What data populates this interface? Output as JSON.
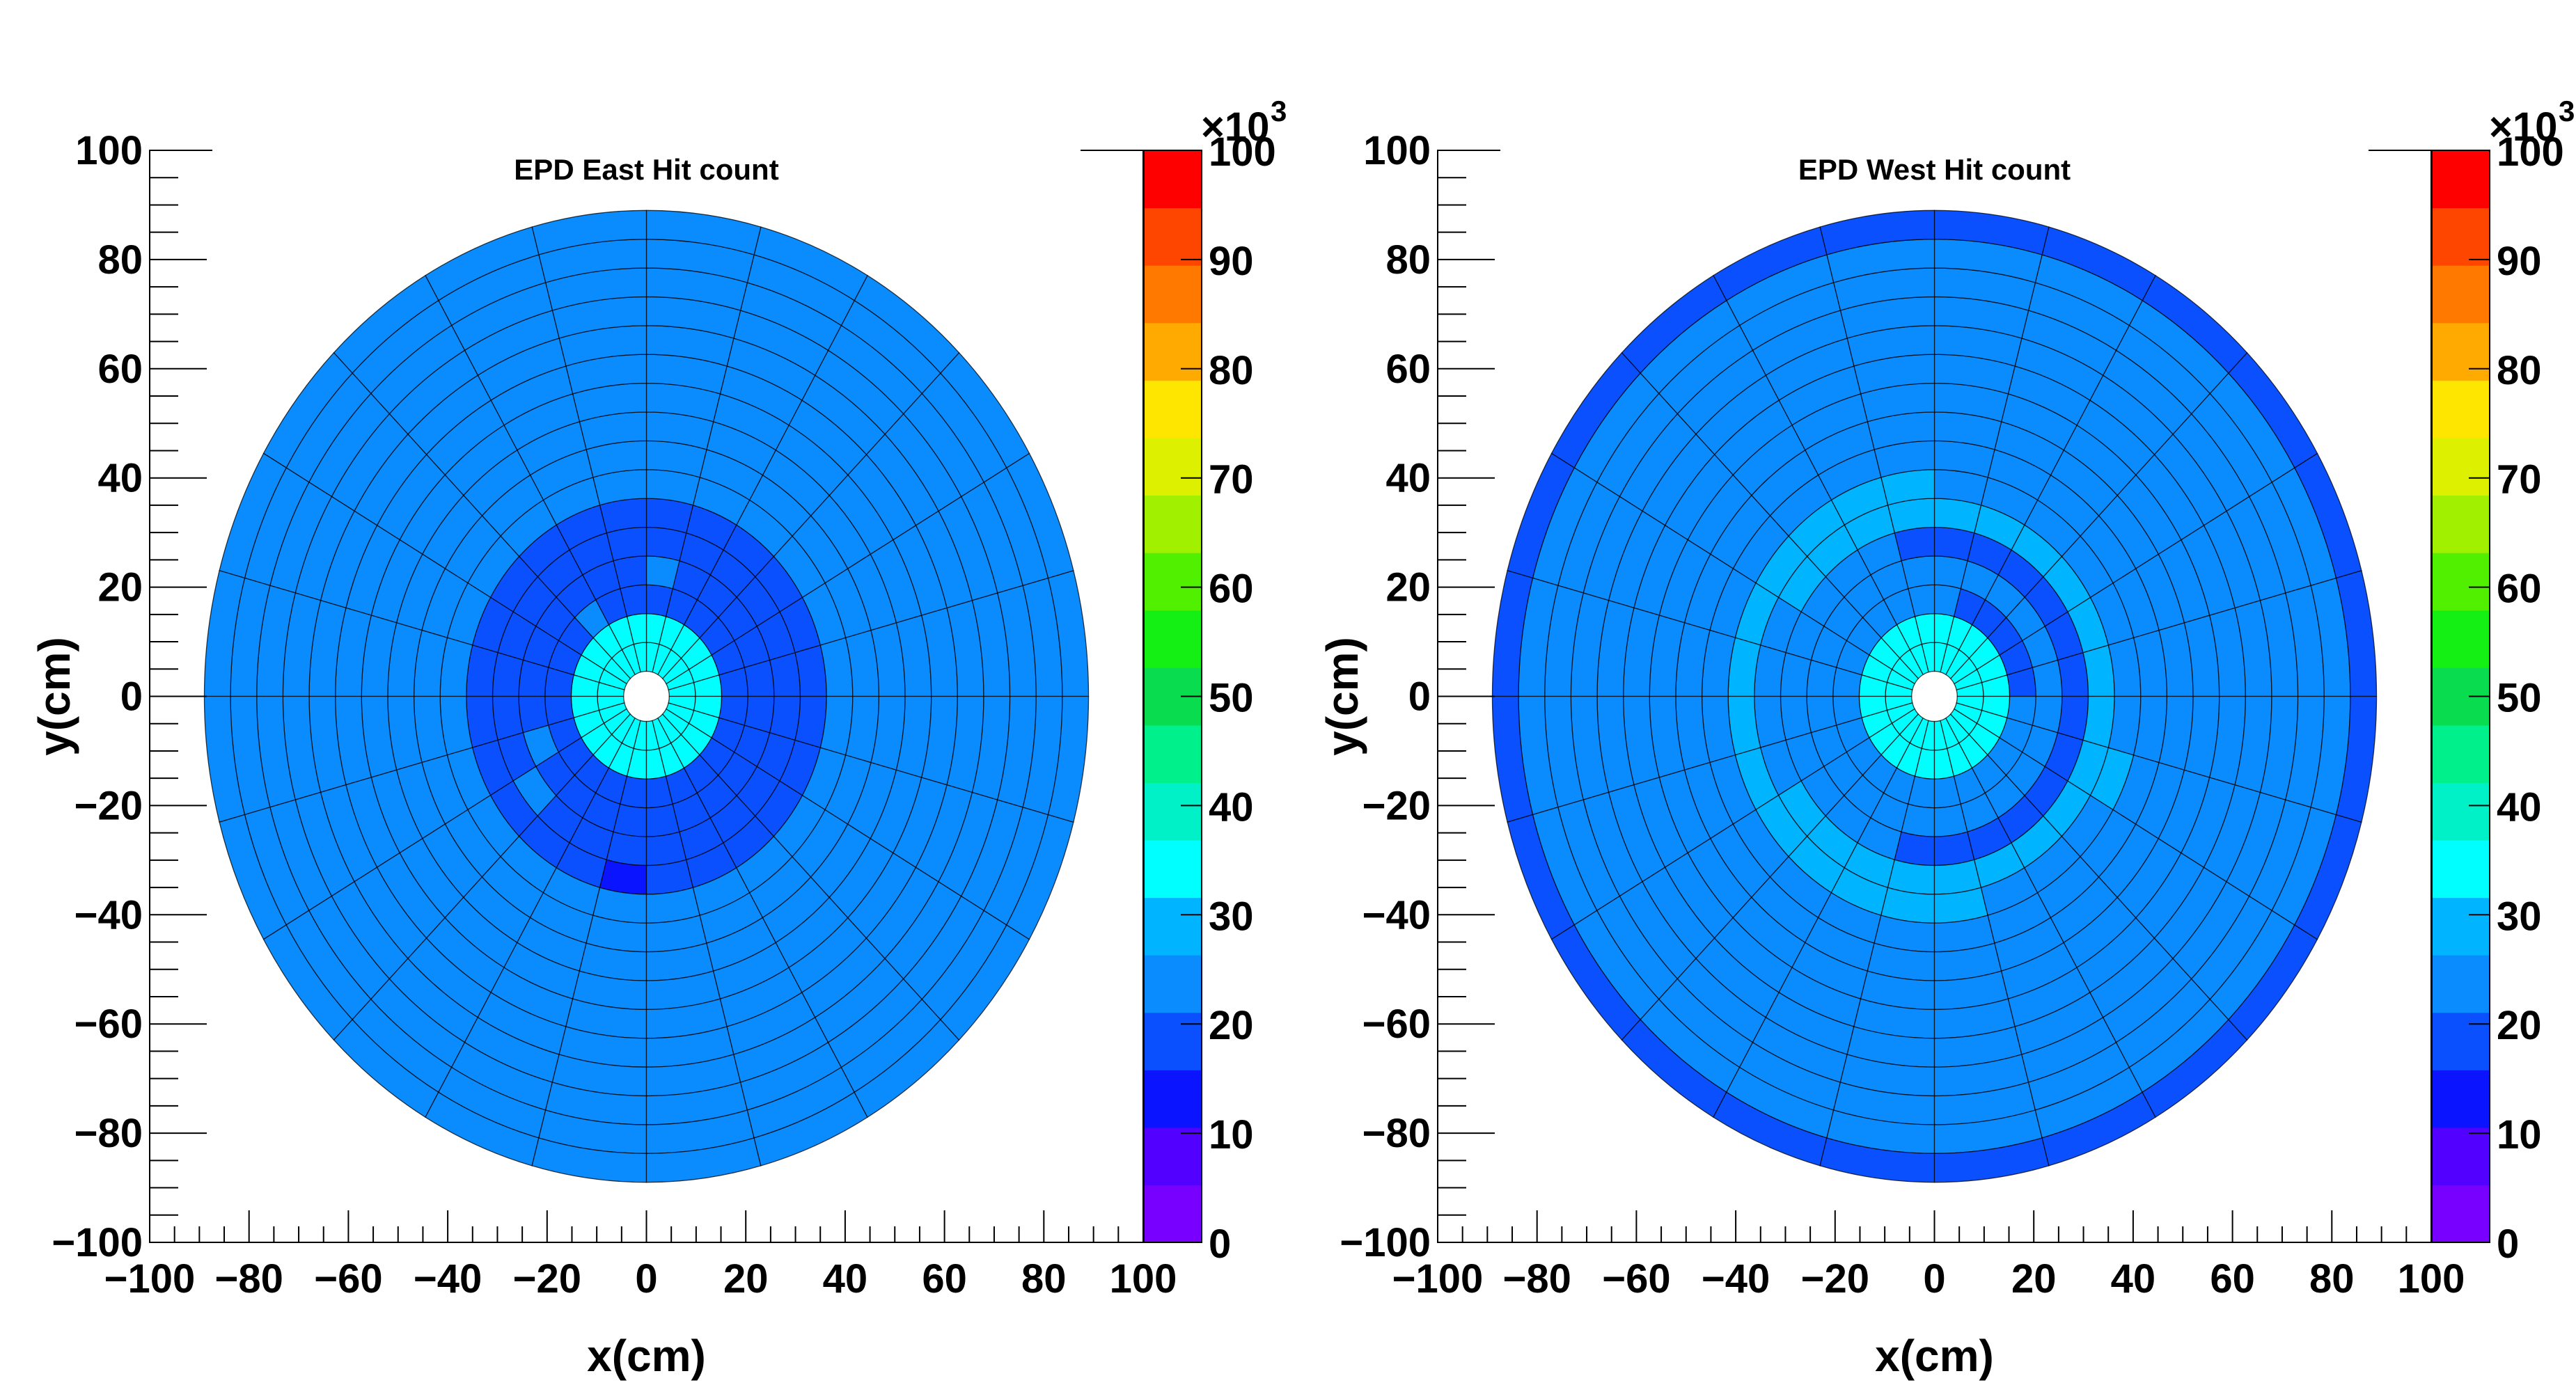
{
  "page": {
    "footer_text": ""
  },
  "chart_data": [
    {
      "type": "heatmap",
      "subtype": "polar-heatmap",
      "title": "EPD East Hit count",
      "xlabel": "x(cm)",
      "ylabel": "y(cm)",
      "xlim": [
        -100,
        100
      ],
      "ylim": [
        -100,
        100
      ],
      "x_ticks": [
        "−100",
        "−80",
        "−60",
        "−40",
        "−20",
        "0",
        "20",
        "40",
        "60",
        "80",
        "100"
      ],
      "y_ticks": [
        "−100",
        "−80",
        "−60",
        "−40",
        "−20",
        "0",
        "20",
        "40",
        "60",
        "80",
        "100"
      ],
      "palette": [
        "#7800ff",
        "#5200ff",
        "#0a14ff",
        "#0a50ff",
        "#0a8cff",
        "#00b4ff",
        "#00ffff",
        "#00f0c8",
        "#00f08c",
        "#0adc50",
        "#14f014",
        "#50f000",
        "#a0f000",
        "#dcf000",
        "#ffe600",
        "#ffaa00",
        "#ff7800",
        "#ff4600",
        "#ff0000"
      ],
      "colorbar": {
        "zmin": 0,
        "zmax": 100,
        "exponent_label": "×10",
        "exponent": "3",
        "tick_labels": [
          "0",
          "10",
          "20",
          "30",
          "40",
          "50",
          "60",
          "70",
          "80",
          "90",
          "100"
        ]
      },
      "geometry": {
        "inner_radius": 4.6,
        "outer_radius": 89.0,
        "rings": 16,
        "sectors": 24
      },
      "background_value": 22,
      "overrides": [
        {
          "rings": [
            0,
            1
          ],
          "value": 35
        },
        {
          "rings": [
            2,
            5
          ],
          "value": 17
        },
        {
          "ring": 3,
          "sector": 5,
          "value": 22
        },
        {
          "ring": 2,
          "sector": 8,
          "value": 22
        },
        {
          "ring": 3,
          "sector": 13,
          "value": 22
        },
        {
          "ring": 4,
          "sector": 14,
          "value": 22
        },
        {
          "ring": 5,
          "sector": 17,
          "value": 12
        }
      ]
    },
    {
      "type": "heatmap",
      "subtype": "polar-heatmap",
      "title": "EPD West Hit count",
      "xlabel": "x(cm)",
      "ylabel": "y(cm)",
      "xlim": [
        -100,
        100
      ],
      "ylim": [
        -100,
        100
      ],
      "x_ticks": [
        "−100",
        "−80",
        "−60",
        "−40",
        "−20",
        "0",
        "20",
        "40",
        "60",
        "80",
        "100"
      ],
      "y_ticks": [
        "−100",
        "−80",
        "−60",
        "−40",
        "−20",
        "0",
        "20",
        "40",
        "60",
        "80",
        "100"
      ],
      "palette": [
        "#7800ff",
        "#5200ff",
        "#0a14ff",
        "#0a50ff",
        "#0a8cff",
        "#00b4ff",
        "#00ffff",
        "#00f0c8",
        "#00f08c",
        "#0adc50",
        "#14f014",
        "#50f000",
        "#a0f000",
        "#dcf000",
        "#ffe600",
        "#ffaa00",
        "#ff7800",
        "#ff4600",
        "#ff0000"
      ],
      "colorbar": {
        "zmin": 0,
        "zmax": 100,
        "exponent_label": "×10",
        "exponent": "3",
        "tick_labels": [
          "0",
          "10",
          "20",
          "30",
          "40",
          "50",
          "60",
          "70",
          "80",
          "90",
          "100"
        ]
      },
      "geometry": {
        "inner_radius": 4.6,
        "outer_radius": 89.0,
        "rings": 16,
        "sectors": 24
      },
      "background_value": 22,
      "overrides": [
        {
          "rings": [
            0,
            1
          ],
          "value": 35
        },
        {
          "ring": 15,
          "value": 17
        },
        {
          "ring": 2,
          "sectors": [
            0,
            1,
            2,
            3,
            4
          ],
          "value": 17
        },
        {
          "ring": 3,
          "sectors": [
            0,
            1,
            2,
            3,
            4,
            5
          ],
          "value": 22
        },
        {
          "ring": 4,
          "sectors": [
            17,
            18,
            19,
            20,
            21,
            22,
            23,
            0,
            1,
            2,
            3,
            4,
            5,
            6
          ],
          "value": 17
        },
        {
          "ring": 5,
          "sectors": [
            14,
            15,
            16,
            17,
            18,
            19,
            20,
            21,
            22,
            23,
            0,
            1,
            2,
            3,
            4,
            5,
            6,
            7,
            8,
            9
          ],
          "value": 27
        },
        {
          "ring": 6,
          "sectors": [
            6,
            7,
            8,
            9,
            10,
            11,
            12,
            13,
            14,
            15,
            16,
            17,
            18
          ],
          "value": 27
        },
        {
          "ring": 6,
          "sectors": [
            22
          ],
          "value": 27
        }
      ]
    }
  ]
}
